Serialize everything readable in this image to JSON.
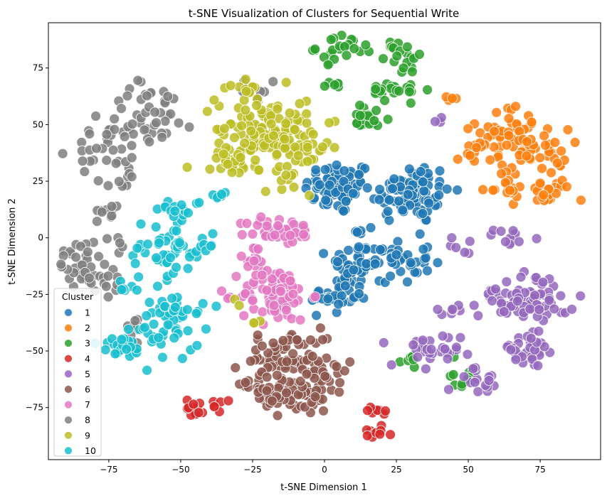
{
  "chart_data": {
    "type": "scatter",
    "title": "t-SNE Visualization of Clusters for Sequential Write",
    "xlabel": "t-SNE Dimension 1",
    "ylabel": "t-SNE Dimension 2",
    "xlim": [
      -96,
      96
    ],
    "ylim": [
      -98,
      95
    ],
    "xticks": [
      -75,
      -50,
      -25,
      0,
      25,
      50,
      75
    ],
    "xtick_labels": [
      "−75",
      "−50",
      "−25",
      "0",
      "25",
      "50",
      "75"
    ],
    "yticks": [
      -75,
      -50,
      -25,
      0,
      25,
      50,
      75
    ],
    "ytick_labels": [
      "−75",
      "−50",
      "−25",
      "0",
      "25",
      "50",
      "75"
    ],
    "grid": false,
    "legend": {
      "title": "Cluster",
      "placement": "lower-left"
    },
    "marker": {
      "edge_color": "#ffffff",
      "alpha": 0.85
    },
    "series": [
      {
        "name": "1",
        "color": "#1f77b4",
        "blobs": [
          {
            "cx": 5,
            "cy": 22,
            "sx": 6,
            "sy": 6,
            "n": 70
          },
          {
            "cx": 30,
            "cy": 20,
            "sx": 7,
            "sy": 7,
            "n": 90
          },
          {
            "cx": 12,
            "cy": -12,
            "sx": 5,
            "sy": 5,
            "n": 40
          },
          {
            "cx": 5,
            "cy": -25,
            "sx": 5,
            "sy": 4,
            "n": 35
          },
          {
            "cx": 25,
            "cy": -10,
            "sx": 6,
            "sy": 5,
            "n": 40
          },
          {
            "cx": 15,
            "cy": 3,
            "sx": 2,
            "sy": 1.5,
            "n": 6
          }
        ]
      },
      {
        "name": "2",
        "color": "#ff7f0e",
        "blobs": [
          {
            "cx": 65,
            "cy": 48,
            "sx": 6,
            "sy": 5,
            "n": 40
          },
          {
            "cx": 73,
            "cy": 38,
            "sx": 6,
            "sy": 5,
            "n": 45
          },
          {
            "cx": 52,
            "cy": 37,
            "sx": 3,
            "sy": 3,
            "n": 15
          },
          {
            "cx": 62,
            "cy": 22,
            "sx": 4,
            "sy": 2.5,
            "n": 15
          },
          {
            "cx": 78,
            "cy": 20,
            "sx": 4,
            "sy": 3,
            "n": 20
          },
          {
            "cx": 43,
            "cy": 62,
            "sx": 2,
            "sy": 1.5,
            "n": 4
          }
        ]
      },
      {
        "name": "3",
        "color": "#2ca02c",
        "blobs": [
          {
            "cx": 5,
            "cy": 84,
            "sx": 4,
            "sy": 3,
            "n": 18
          },
          {
            "cx": 17,
            "cy": 82,
            "sx": 4,
            "sy": 2,
            "n": 12
          },
          {
            "cx": 30,
            "cy": 78,
            "sx": 3,
            "sy": 3,
            "n": 12
          },
          {
            "cx": 15,
            "cy": 53,
            "sx": 4,
            "sy": 3,
            "n": 22
          },
          {
            "cx": 22,
            "cy": 64,
            "sx": 4,
            "sy": 2,
            "n": 14
          },
          {
            "cx": 3,
            "cy": 68,
            "sx": 2,
            "sy": 1.5,
            "n": 6
          },
          {
            "cx": 30,
            "cy": 65,
            "sx": 3,
            "sy": 2,
            "n": 8
          },
          {
            "cx": 30,
            "cy": -55,
            "sx": 3,
            "sy": 2,
            "n": 6
          },
          {
            "cx": 50,
            "cy": -58,
            "sx": 3,
            "sy": 3,
            "n": 6
          },
          {
            "cx": 48,
            "cy": -64,
            "sx": 2,
            "sy": 1.5,
            "n": 4
          }
        ]
      },
      {
        "name": "4",
        "color": "#d62728",
        "blobs": [
          {
            "cx": -45,
            "cy": -75,
            "sx": 1.5,
            "sy": 2,
            "n": 12
          },
          {
            "cx": -37,
            "cy": -74,
            "sx": 1.2,
            "sy": 1.5,
            "n": 6
          },
          {
            "cx": 17,
            "cy": -77,
            "sx": 2,
            "sy": 1,
            "n": 8
          },
          {
            "cx": 18,
            "cy": -86,
            "sx": 2.5,
            "sy": 1.5,
            "n": 10
          }
        ]
      },
      {
        "name": "5",
        "color": "#9467bd",
        "blobs": [
          {
            "cx": 68,
            "cy": -25,
            "sx": 7,
            "sy": 5,
            "n": 50
          },
          {
            "cx": 75,
            "cy": -30,
            "sx": 5,
            "sy": 3,
            "n": 25
          },
          {
            "cx": 65,
            "cy": 0,
            "sx": 3,
            "sy": 2,
            "n": 12
          },
          {
            "cx": 48,
            "cy": -3,
            "sx": 2,
            "sy": 2,
            "n": 6
          },
          {
            "cx": 45,
            "cy": -32,
            "sx": 3,
            "sy": 2,
            "n": 8
          },
          {
            "cx": 35,
            "cy": -52,
            "sx": 6,
            "sy": 5,
            "n": 30
          },
          {
            "cx": 70,
            "cy": -50,
            "sx": 6,
            "sy": 4,
            "n": 30
          },
          {
            "cx": 55,
            "cy": -63,
            "sx": 5,
            "sy": 3,
            "n": 15
          },
          {
            "cx": 40,
            "cy": 52,
            "sx": 2,
            "sy": 1.5,
            "n": 3
          }
        ]
      },
      {
        "name": "6",
        "color": "#8c564b",
        "blobs": [
          {
            "cx": -17,
            "cy": -55,
            "sx": 6,
            "sy": 5,
            "n": 60
          },
          {
            "cx": -8,
            "cy": -70,
            "sx": 6,
            "sy": 4,
            "n": 40
          },
          {
            "cx": -20,
            "cy": -68,
            "sx": 4,
            "sy": 4,
            "n": 25
          },
          {
            "cx": 0,
            "cy": -58,
            "sx": 4,
            "sy": 5,
            "n": 25
          },
          {
            "cx": -8,
            "cy": -45,
            "sx": 4,
            "sy": 1.5,
            "n": 12
          }
        ]
      },
      {
        "name": "7",
        "color": "#e377c2",
        "blobs": [
          {
            "cx": -17,
            "cy": -25,
            "sx": 6,
            "sy": 6,
            "n": 80
          },
          {
            "cx": -15,
            "cy": 3,
            "sx": 6,
            "sy": 3,
            "n": 40
          },
          {
            "cx": -25,
            "cy": -10,
            "sx": 3,
            "sy": 4,
            "n": 15
          }
        ]
      },
      {
        "name": "8",
        "color": "#7f7f7f",
        "blobs": [
          {
            "cx": -60,
            "cy": 55,
            "sx": 8,
            "sy": 7,
            "n": 45
          },
          {
            "cx": -75,
            "cy": 38,
            "sx": 6,
            "sy": 6,
            "n": 30
          },
          {
            "cx": -70,
            "cy": 25,
            "sx": 3,
            "sy": 2,
            "n": 8
          },
          {
            "cx": -85,
            "cy": -10,
            "sx": 4,
            "sy": 6,
            "n": 30
          },
          {
            "cx": -75,
            "cy": -18,
            "sx": 3,
            "sy": 4,
            "n": 15
          },
          {
            "cx": -75,
            "cy": 12,
            "sx": 2,
            "sy": 2,
            "n": 10
          },
          {
            "cx": -25,
            "cy": 65,
            "sx": 5,
            "sy": 2,
            "n": 10
          },
          {
            "cx": -67,
            "cy": -40,
            "sx": 2,
            "sy": 4,
            "n": 8
          },
          {
            "cx": -72,
            "cy": -2,
            "sx": 2,
            "sy": 2,
            "n": 5
          }
        ]
      },
      {
        "name": "9",
        "color": "#bcbd22",
        "blobs": [
          {
            "cx": -22,
            "cy": 48,
            "sx": 8,
            "sy": 8,
            "n": 90
          },
          {
            "cx": -10,
            "cy": 40,
            "sx": 6,
            "sy": 8,
            "n": 60
          },
          {
            "cx": -32,
            "cy": 35,
            "sx": 4,
            "sy": 4,
            "n": 25
          },
          {
            "cx": -28,
            "cy": 65,
            "sx": 3,
            "sy": 2,
            "n": 10
          },
          {
            "cx": -30,
            "cy": -29,
            "sx": 1,
            "sy": 1,
            "n": 2
          },
          {
            "cx": -22,
            "cy": -38,
            "sx": 2,
            "sy": 1,
            "n": 3
          }
        ]
      },
      {
        "name": "10",
        "color": "#17becf",
        "blobs": [
          {
            "cx": -55,
            "cy": -5,
            "sx": 7,
            "sy": 7,
            "n": 50
          },
          {
            "cx": -50,
            "cy": 13,
            "sx": 4,
            "sy": 2,
            "n": 15
          },
          {
            "cx": -70,
            "cy": -47,
            "sx": 4,
            "sy": 4,
            "n": 25
          },
          {
            "cx": -55,
            "cy": -42,
            "sx": 6,
            "sy": 5,
            "n": 30
          },
          {
            "cx": -52,
            "cy": -30,
            "sx": 5,
            "sy": 3,
            "n": 20
          },
          {
            "cx": -68,
            "cy": -22,
            "sx": 2,
            "sy": 2,
            "n": 6
          },
          {
            "cx": -38,
            "cy": 18,
            "sx": 2,
            "sy": 1.5,
            "n": 6
          },
          {
            "cx": -40,
            "cy": -3,
            "sx": 2,
            "sy": 2,
            "n": 6
          }
        ]
      }
    ]
  }
}
